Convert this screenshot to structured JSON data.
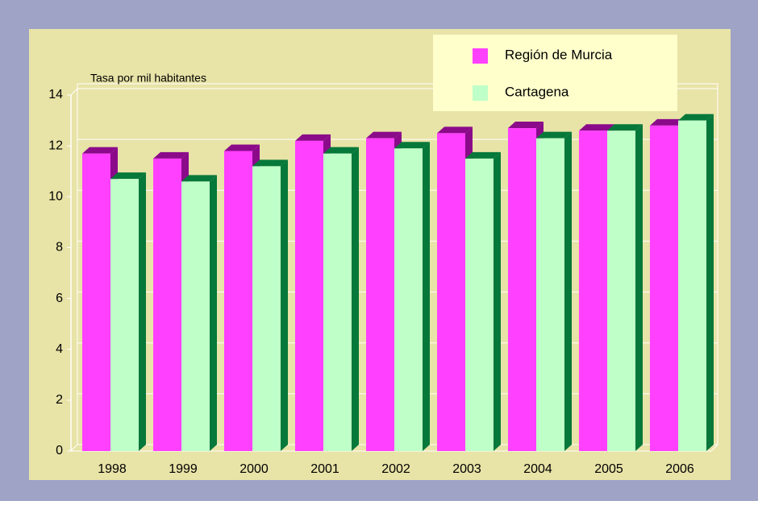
{
  "chart_data": {
    "type": "bar3d",
    "y_axis_label": "Tasa por mil habitantes",
    "categories": [
      "1998",
      "1999",
      "2000",
      "2001",
      "2002",
      "2003",
      "2004",
      "2005",
      "2006"
    ],
    "series": [
      {
        "name": "Región de Murcia",
        "color": "#ff40ff",
        "shade": "#8a0a8a",
        "values": [
          11.7,
          11.5,
          11.8,
          12.2,
          12.3,
          12.5,
          12.7,
          12.6,
          12.8
        ]
      },
      {
        "name": "Cartagena",
        "color": "#bfffc8",
        "shade": "#06783a",
        "values": [
          10.7,
          10.6,
          11.2,
          11.7,
          11.9,
          11.5,
          12.3,
          12.6,
          13.0
        ]
      }
    ],
    "ylim": [
      0,
      14
    ],
    "yticks": [
      0,
      2,
      4,
      6,
      8,
      10,
      12,
      14
    ],
    "grid": true
  }
}
